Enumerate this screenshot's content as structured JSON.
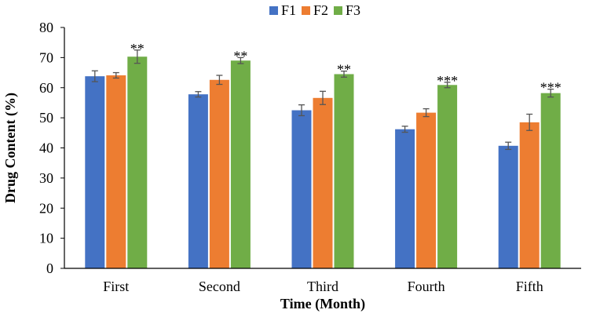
{
  "chart_data": {
    "type": "bar",
    "title": "",
    "xlabel": "Time (Month)",
    "ylabel": "Drug Content (%)",
    "ylim": [
      0,
      80
    ],
    "yticks": [
      0,
      10,
      20,
      30,
      40,
      50,
      60,
      70,
      80
    ],
    "grid": false,
    "legend_position": "top-center",
    "categories": [
      "First",
      "Second",
      "Third",
      "Fourth",
      "Fifth"
    ],
    "series": [
      {
        "name": "F1",
        "color": "#4472C4",
        "values": [
          63.8,
          57.8,
          52.5,
          46.2,
          40.7
        ],
        "errors": [
          1.8,
          0.9,
          1.8,
          1.0,
          1.2
        ]
      },
      {
        "name": "F2",
        "color": "#ED7D31",
        "values": [
          64.1,
          62.6,
          56.6,
          51.7,
          48.5
        ],
        "errors": [
          0.9,
          1.5,
          2.2,
          1.3,
          2.7
        ]
      },
      {
        "name": "F3",
        "color": "#70AD47",
        "values": [
          70.3,
          69.0,
          64.5,
          60.9,
          58.2
        ],
        "errors": [
          2.2,
          1.0,
          1.0,
          0.9,
          1.3
        ]
      }
    ],
    "annotations": [
      "**",
      "**",
      "**",
      "***",
      "***"
    ]
  }
}
